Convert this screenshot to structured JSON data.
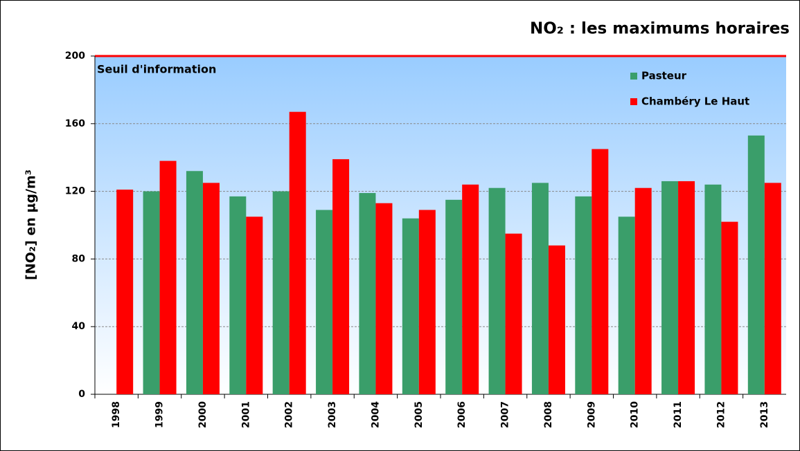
{
  "chart_data": {
    "type": "bar",
    "title": "NO₂ : les maximums horaires",
    "y_label": "[NO₂] en µg/m³",
    "categories": [
      "1998",
      "1999",
      "2000",
      "2001",
      "2002",
      "2003",
      "2004",
      "2005",
      "2006",
      "2007",
      "2008",
      "2009",
      "2010",
      "2011",
      "2012",
      "2013"
    ],
    "series": [
      {
        "name": "Pasteur",
        "color": "#3a9e6a",
        "values": [
          null,
          120,
          132,
          117,
          120,
          109,
          119,
          104,
          115,
          122,
          125,
          117,
          105,
          126,
          124,
          153
        ]
      },
      {
        "name": "Chambéry Le Haut",
        "color": "#ff0000",
        "values": [
          121,
          138,
          125,
          105,
          167,
          139,
          113,
          109,
          124,
          95,
          88,
          145,
          122,
          126,
          102,
          125
        ]
      }
    ],
    "threshold": {
      "value": 200,
      "label": "Seuil d'information",
      "color": "#ff0000"
    },
    "ylim": [
      0,
      200
    ],
    "yticks": [
      0,
      40,
      80,
      120,
      160,
      200
    ],
    "grid": true,
    "legend": "upper right"
  }
}
